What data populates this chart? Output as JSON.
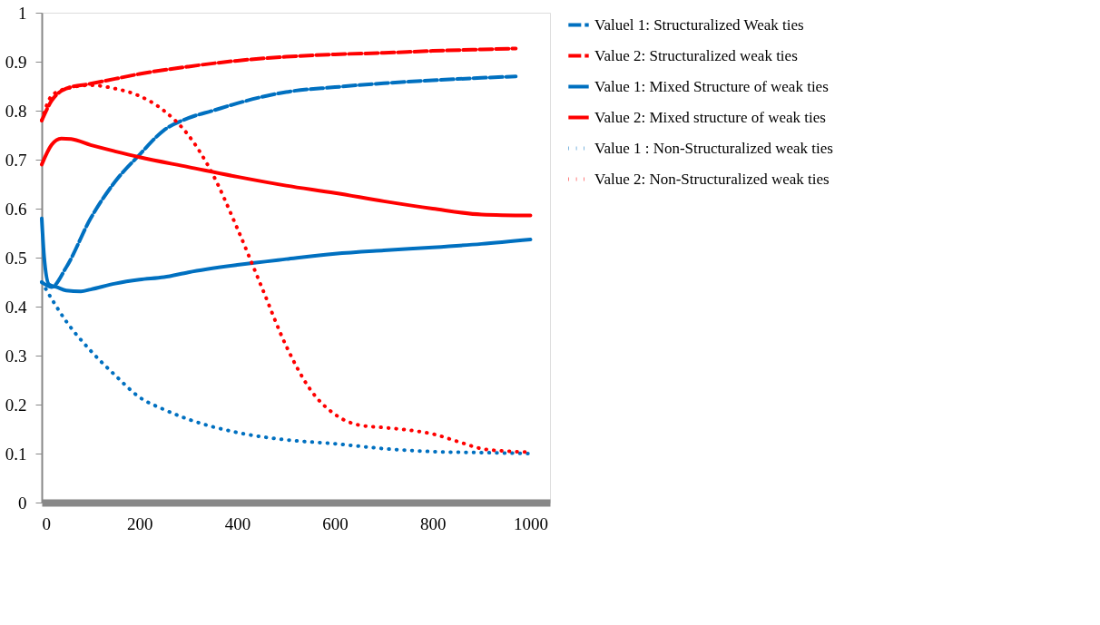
{
  "chart_data": {
    "type": "line",
    "xlim": [
      0,
      1040
    ],
    "xticks": [
      0,
      200,
      400,
      600,
      800,
      1000
    ],
    "ylim": [
      0,
      1
    ],
    "yticks": [
      0,
      0.1,
      0.2,
      0.3,
      0.4,
      0.5,
      0.6,
      0.7,
      0.8,
      0.9,
      1
    ],
    "grid": false,
    "legend": "right",
    "marker": "none",
    "series": [
      {
        "name": "Valuel 1: Structuralized Weak ties",
        "color": "#0070c0",
        "line_style": "dashed",
        "x": [
          0,
          20,
          50,
          100,
          150,
          200,
          250,
          300,
          350,
          400,
          450,
          500,
          600,
          700,
          800,
          900,
          970
        ],
        "values": [
          0.45,
          0.44,
          0.48,
          0.58,
          0.655,
          0.71,
          0.76,
          0.785,
          0.8,
          0.815,
          0.828,
          0.838,
          0.848,
          0.856,
          0.862,
          0.867,
          0.87
        ]
      },
      {
        "name": "Value 2: Structuralized weak ties",
        "color": "#ff0000",
        "line_style": "dashed",
        "x": [
          0,
          20,
          50,
          100,
          150,
          200,
          300,
          400,
          500,
          600,
          700,
          800,
          900,
          970
        ],
        "values": [
          0.78,
          0.82,
          0.845,
          0.855,
          0.865,
          0.875,
          0.89,
          0.902,
          0.91,
          0.915,
          0.918,
          0.922,
          0.925,
          0.927
        ]
      },
      {
        "name": "Value 1: Mixed Structure of weak ties",
        "color": "#0070c0",
        "line_style": "solid",
        "x": [
          0,
          5,
          15,
          30,
          50,
          80,
          100,
          150,
          200,
          250,
          300,
          400,
          500,
          600,
          700,
          800,
          900,
          1000
        ],
        "values": [
          0.58,
          0.5,
          0.445,
          0.44,
          0.433,
          0.431,
          0.435,
          0.447,
          0.455,
          0.46,
          0.47,
          0.485,
          0.497,
          0.508,
          0.515,
          0.521,
          0.528,
          0.537
        ]
      },
      {
        "name": "Value 2: Mixed structure of weak ties",
        "color": "#ff0000",
        "line_style": "solid",
        "x": [
          0,
          20,
          40,
          60,
          100,
          150,
          200,
          300,
          400,
          500,
          600,
          700,
          800,
          900,
          1000
        ],
        "values": [
          0.69,
          0.73,
          0.743,
          0.742,
          0.73,
          0.717,
          0.705,
          0.685,
          0.665,
          0.647,
          0.632,
          0.615,
          0.6,
          0.588,
          0.586
        ]
      },
      {
        "name": "Value 1 : Non-Structuralized weak ties",
        "color": "#0070c0",
        "line_style": "dotted",
        "x": [
          0,
          50,
          100,
          150,
          200,
          250,
          300,
          400,
          500,
          600,
          700,
          800,
          900,
          1000
        ],
        "values": [
          0.45,
          0.37,
          0.31,
          0.26,
          0.215,
          0.19,
          0.17,
          0.143,
          0.128,
          0.12,
          0.11,
          0.104,
          0.102,
          0.1
        ]
      },
      {
        "name": "Value 2: Non-Structuralized weak ties",
        "color": "#ff0000",
        "line_style": "dotted",
        "x": [
          0,
          20,
          50,
          100,
          150,
          200,
          250,
          300,
          350,
          400,
          450,
          500,
          550,
          600,
          650,
          700,
          750,
          800,
          850,
          900,
          950,
          1000
        ],
        "values": [
          0.78,
          0.83,
          0.845,
          0.852,
          0.845,
          0.83,
          0.8,
          0.75,
          0.67,
          0.56,
          0.44,
          0.32,
          0.23,
          0.18,
          0.158,
          0.153,
          0.148,
          0.14,
          0.125,
          0.11,
          0.105,
          0.103
        ]
      }
    ]
  }
}
